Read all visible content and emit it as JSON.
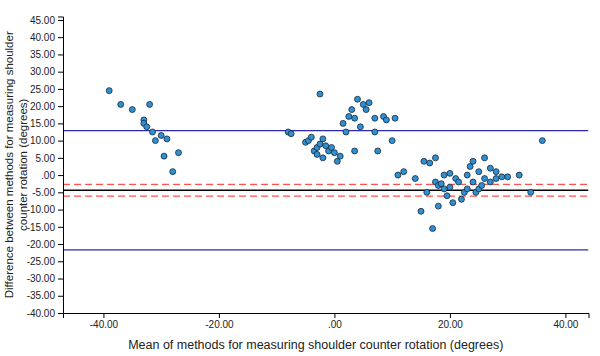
{
  "chart_data": {
    "type": "scatter",
    "x_label": "Mean of methods for measuring shoulder counter rotation (degrees)",
    "y_label": [
      "Difference between methods for measuring shoulder",
      "counter rotation (degrees)"
    ],
    "xlim": [
      -47,
      44
    ],
    "ylim": [
      -40,
      46
    ],
    "xticks": [
      {
        "value": -40,
        "label": "-40.00"
      },
      {
        "value": -20,
        "label": "-20.00"
      },
      {
        "value": 0,
        "label": ".00"
      },
      {
        "value": 20,
        "label": "20.00"
      },
      {
        "value": 40,
        "label": "40.00"
      }
    ],
    "yticks": [
      {
        "value": -40,
        "label": "-40.00"
      },
      {
        "value": -35,
        "label": "-35.00"
      },
      {
        "value": -30,
        "label": "-30.00"
      },
      {
        "value": -25,
        "label": "-25.00"
      },
      {
        "value": -20,
        "label": "-20.00"
      },
      {
        "value": -15,
        "label": "-15.00"
      },
      {
        "value": -10,
        "label": "-10.00"
      },
      {
        "value": -5,
        "label": "-5.00"
      },
      {
        "value": 0,
        "label": ".00"
      },
      {
        "value": 5,
        "label": "5.00"
      },
      {
        "value": 10,
        "label": "10.00"
      },
      {
        "value": 15,
        "label": "15.00"
      },
      {
        "value": 20,
        "label": "20.00"
      },
      {
        "value": 25,
        "label": "25.00"
      },
      {
        "value": 30,
        "label": "30.00"
      },
      {
        "value": 35,
        "label": "35.00"
      },
      {
        "value": 40,
        "label": "40.00"
      },
      {
        "value": 45,
        "label": "45.00"
      }
    ],
    "grid": false,
    "series": [
      {
        "color": "#2f8fd0",
        "marker": "circle",
        "x": [
          -39,
          -37,
          -35,
          -33,
          -33,
          -32.5,
          -32,
          -31.5,
          -31,
          -30,
          -29.5,
          -29,
          -28,
          -27,
          -8,
          -7.5,
          -5,
          -4.5,
          -4,
          -3.5,
          -3,
          -3,
          -2.5,
          -2.5,
          -2,
          -2,
          -1.5,
          -1,
          -0.5,
          0,
          0.5,
          1,
          1.5,
          2,
          2.5,
          3,
          3.5,
          3.5,
          4,
          4.5,
          5,
          5.5,
          6,
          7,
          7,
          7.5,
          8.5,
          9,
          10,
          10.5,
          11,
          12,
          14,
          15,
          15.5,
          16,
          16.5,
          17,
          17.5,
          17.5,
          18,
          18,
          18.5,
          19,
          19,
          19.5,
          20,
          20,
          20.5,
          21,
          21.5,
          22,
          22.5,
          23,
          23,
          23.5,
          24,
          24,
          24.5,
          25,
          25,
          25.5,
          26,
          26,
          27,
          27,
          28,
          28,
          29,
          30,
          32,
          34,
          36
        ],
        "values": [
          24.5,
          20.5,
          19,
          16,
          15,
          14,
          20.5,
          12.5,
          10,
          11.5,
          5.5,
          10.5,
          1,
          6.5,
          12.5,
          12,
          9.5,
          10,
          11,
          7,
          6,
          8,
          23.5,
          9,
          5,
          10.5,
          8.5,
          7,
          8,
          6.5,
          4,
          5.5,
          15,
          12.5,
          17,
          19,
          16.5,
          7,
          22,
          14,
          20.5,
          19,
          21,
          16.5,
          12.5,
          7,
          17,
          16,
          10,
          16.5,
          0,
          1,
          -1,
          -10.5,
          4,
          -5,
          3.5,
          -15.5,
          -2,
          5,
          -3,
          -9,
          -2.5,
          0,
          -4,
          -6,
          0.5,
          -3.5,
          -8,
          -1,
          -2,
          -7,
          -5,
          0,
          -4,
          2.5,
          4,
          -2,
          -5,
          -4,
          1,
          -3,
          5,
          -1,
          2,
          -2,
          -1,
          1,
          -0.5,
          -0.5,
          0,
          -5,
          10
        ]
      }
    ],
    "reference_lines": [
      {
        "value": 12.9,
        "color": "#2b2bb8",
        "line_style": "solid"
      },
      {
        "value": -21.7,
        "color": "#2b2bb8",
        "line_style": "solid"
      },
      {
        "value": -4.4,
        "color": "#000000",
        "line_style": "solid"
      },
      {
        "value": -2.7,
        "color": "#ff5050",
        "line_style": "dashed"
      },
      {
        "value": -6.1,
        "color": "#ff5050",
        "line_style": "dashed"
      }
    ]
  }
}
